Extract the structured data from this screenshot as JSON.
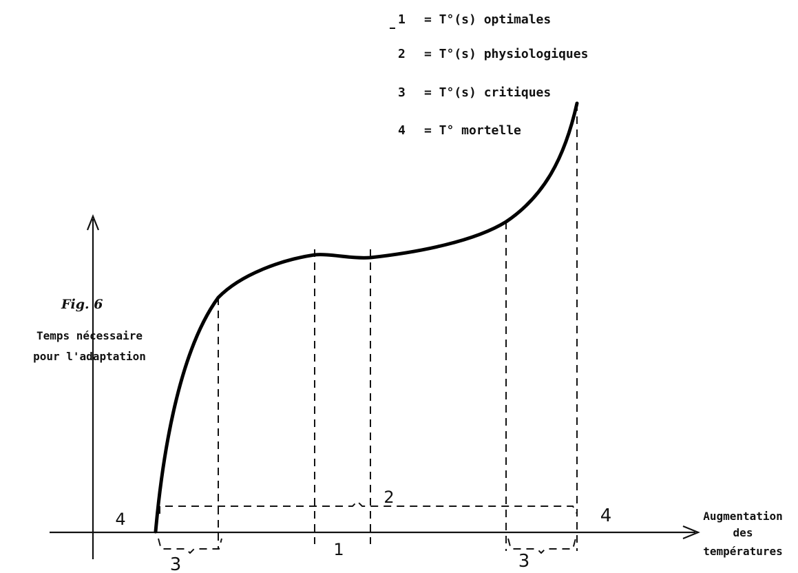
{
  "figure": {
    "label": "Fig. 6",
    "y_axis_label": [
      "Temps nécessaire",
      "pour l'adaptation"
    ],
    "x_axis_label": [
      "Augmentation",
      "des",
      "températures"
    ]
  },
  "legend": [
    {
      "number": "1",
      "text": "= T°(s) optimales"
    },
    {
      "number": "2",
      "text": "= T°(s) physiologiques"
    },
    {
      "number": "3",
      "text": "= T°(s) critiques"
    },
    {
      "number": "4",
      "text": "= T° mortelle"
    }
  ],
  "zone_labels": {
    "mortal_left": "4",
    "mortal_right": "4",
    "critical_left": "3",
    "critical_right": "3",
    "optimal": "1",
    "physiological": "2"
  }
}
